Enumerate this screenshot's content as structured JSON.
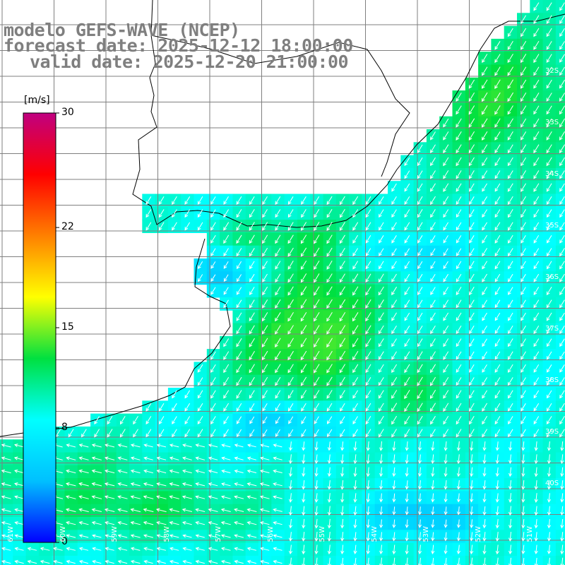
{
  "titles": {
    "line1": "modelo GEFS-WAVE (NCEP)",
    "line2": "forecast date: 2025-12-12 18:00:00",
    "line3": "valid date: 2025-12-20 21:00:00"
  },
  "colorbar": {
    "unit": "[m/s]",
    "min": 0,
    "max": 30,
    "ticks": [
      "0",
      "8",
      "15",
      "22",
      "30"
    ],
    "stops": [
      "#0000ff",
      "#00c0ff",
      "#00ffff",
      "#00e040",
      "#ffff00",
      "#ff8000",
      "#ff0000",
      "#c00080"
    ]
  },
  "map": {
    "variable": "wind speed",
    "land_color": "#ffffff",
    "grid_color": "#7f7f7f",
    "coast_color": "#000000",
    "vector_color": "#ffffff",
    "lat_labels": [
      "32S",
      "33S",
      "34S",
      "35S",
      "36S",
      "37S",
      "38S",
      "39S",
      "40S"
    ],
    "lon_labels": [
      "61W",
      "60W",
      "59W",
      "58W",
      "57W",
      "56W",
      "55W",
      "54W",
      "53W",
      "52W",
      "51W"
    ]
  }
}
